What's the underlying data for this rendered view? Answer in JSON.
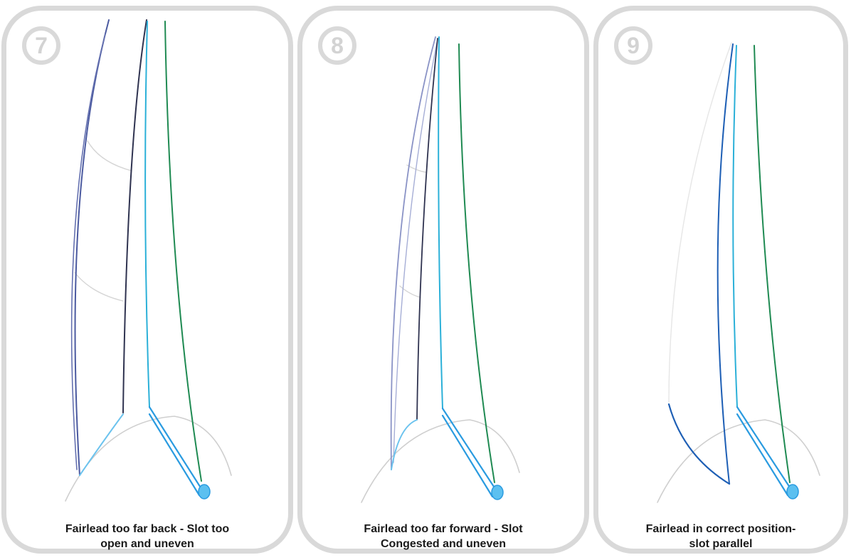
{
  "panels": [
    {
      "number": "7",
      "caption_line1": "Fairlead too far back - Slot too",
      "caption_line2": "open and uneven"
    },
    {
      "number": "8",
      "caption_line1": "Fairlead too far forward - Slot",
      "caption_line2": "Congested and uneven"
    },
    {
      "number": "9",
      "caption_line1": "Fairlead in correct position-",
      "caption_line2": "slot parallel"
    }
  ],
  "colors": {
    "frame": "#d9d9d9",
    "mainsail_outline": "#4b5aa0",
    "mast": "#2f3350",
    "jib_luff": "#2bb0d8",
    "jib_leech": "#1f8a52",
    "jib_foot": "#2a9be0",
    "boom": "#6cc3ee",
    "deck": "#cfcfcf"
  }
}
